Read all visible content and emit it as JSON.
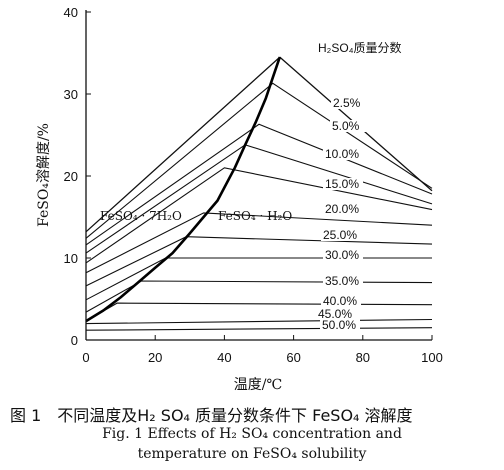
{
  "chart_data": {
    "type": "line",
    "xlabel": "温度/℃",
    "ylabel": "FeSO₄溶解度/%",
    "xlim": [
      0,
      100
    ],
    "ylim": [
      0,
      40
    ],
    "x_ticks": [
      "0",
      "20",
      "40",
      "60",
      "80",
      "100"
    ],
    "y_ticks": [
      "0",
      "10",
      "20",
      "30",
      "40"
    ],
    "legend_title": "H₂SO₄质量分数",
    "regions": [
      "FeSO₄ · 7H₂O",
      "FeSO₄ · H₂O"
    ],
    "heptahydrate_line": {
      "x": [
        0,
        56
      ],
      "y": [
        13.2,
        34.5
      ]
    },
    "monohydrate_line": {
      "x": [
        56,
        100
      ],
      "y": [
        34.5,
        18.2
      ]
    },
    "transition_curve": {
      "x": [
        0,
        5,
        10,
        15,
        20,
        25,
        30,
        35,
        38,
        40,
        43,
        46,
        49,
        52,
        54,
        56
      ],
      "y": [
        2.3,
        3.6,
        5.2,
        7.0,
        8.8,
        10.6,
        13.0,
        15.5,
        17.0,
        18.6,
        21.0,
        23.8,
        26.5,
        29.5,
        32.0,
        34.5
      ]
    },
    "series": [
      {
        "name": "2.5%",
        "x": [
          0,
          54,
          100
        ],
        "y": [
          12.4,
          31.3,
          18.5
        ]
      },
      {
        "name": "5.0%",
        "x": [
          0,
          50,
          100
        ],
        "y": [
          11.6,
          26.3,
          17.8
        ]
      },
      {
        "name": "10.0%",
        "x": [
          0,
          46,
          100
        ],
        "y": [
          10.6,
          23.8,
          16.6
        ]
      },
      {
        "name": "15.0%",
        "x": [
          0,
          40,
          100
        ],
        "y": [
          9.4,
          21.0,
          15.9
        ]
      },
      {
        "name": "20.0%",
        "x": [
          0,
          34,
          100
        ],
        "y": [
          8.2,
          15.5,
          14.0
        ]
      },
      {
        "name": "25.0%",
        "x": [
          0,
          29,
          100
        ],
        "y": [
          6.6,
          12.6,
          11.7
        ]
      },
      {
        "name": "30.0%",
        "x": [
          0,
          23,
          100
        ],
        "y": [
          4.9,
          10.0,
          10.0
        ]
      },
      {
        "name": "35.0%",
        "x": [
          0,
          16,
          100
        ],
        "y": [
          3.4,
          7.2,
          7.0
        ]
      },
      {
        "name": "40.0%",
        "x": [
          0,
          9,
          100
        ],
        "y": [
          2.3,
          4.5,
          4.3
        ]
      },
      {
        "name": "45.0%",
        "x": [
          0,
          100
        ],
        "y": [
          2.0,
          2.5
        ]
      },
      {
        "name": "50.0%",
        "x": [
          0,
          100
        ],
        "y": [
          1.2,
          1.5
        ]
      }
    ]
  },
  "caption": {
    "zh": "图 1　不同温度及H₂ SO₄ 质量分数条件下 FeSO₄ 溶解度",
    "en_line1": "Fig. 1    Effects of  H₂ SO₄  concentration and",
    "en_line2": "temperature on FeSO₄  solubility"
  }
}
